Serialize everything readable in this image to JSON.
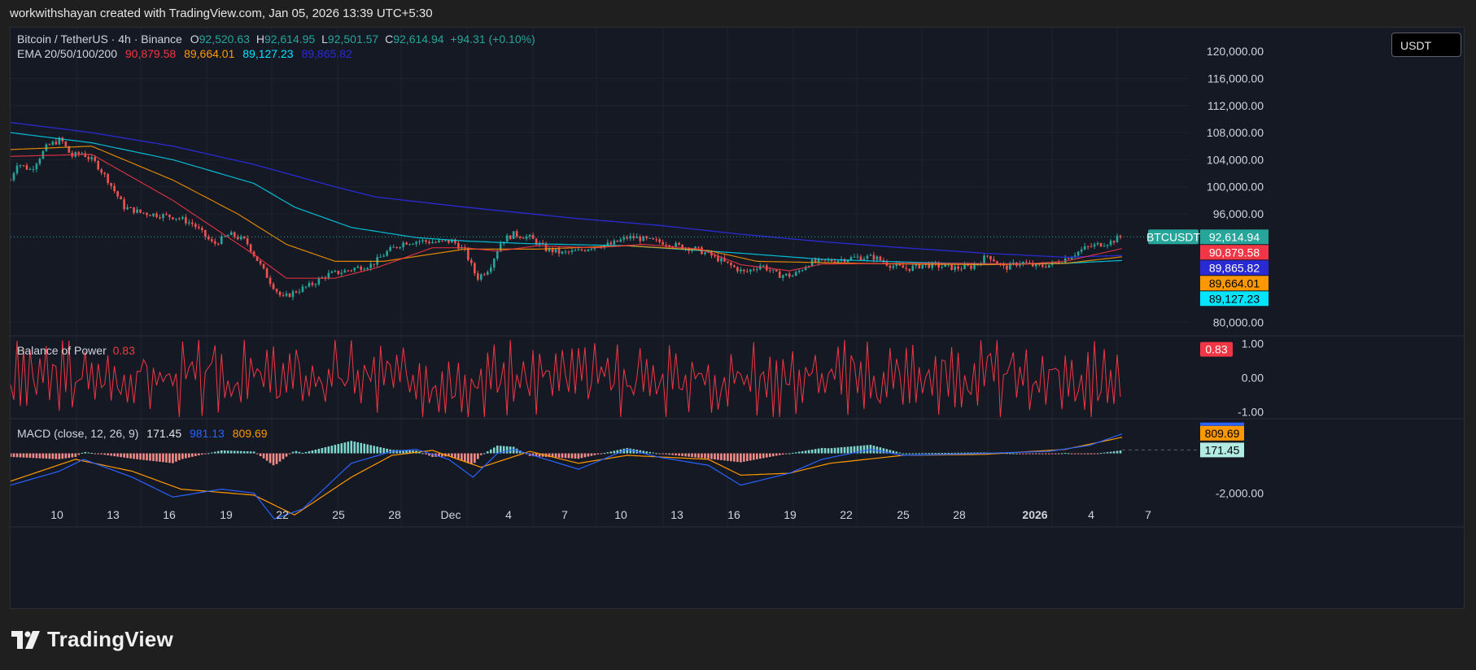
{
  "credit": "workwithshayan created with TradingView.com, Jan 05, 2026 13:39 UTC+5:30",
  "logo_text": "TradingView",
  "currency_button": "USDT",
  "symbol_legend": {
    "title": "Bitcoin / TetherUS · 4h · Binance",
    "o_key": "O",
    "o": "92,520.63",
    "h_key": "H",
    "h": "92,614.95",
    "l_key": "L",
    "l": "92,501.57",
    "c_key": "C",
    "c": "92,614.94",
    "change": "+94.31 (+0.10%)"
  },
  "ema_legend": {
    "title": "EMA 20/50/100/200",
    "v20": "90,879.58",
    "v50": "89,664.01",
    "v100": "89,127.23",
    "v200": "89,865.82"
  },
  "bop_legend": {
    "title": "Balance of Power",
    "value": "0.83"
  },
  "macd_legend": {
    "title": "MACD (close, 12, 26, 9)",
    "hist": "171.45",
    "macd": "981.13",
    "signal": "809.69"
  },
  "colors": {
    "up": "#26a69a",
    "down": "#ef5350",
    "ema20": "#f23645",
    "ema50": "#ff9800",
    "ema100": "#00e5ff",
    "ema200": "#2a2ad4",
    "bop": "#f23645",
    "macd": "#2962ff",
    "signal": "#ff9800"
  },
  "chart_data": [
    {
      "type": "candlestick",
      "title": "Bitcoin / TetherUS · 4h · Binance",
      "y_ticks": [
        "116,000.00",
        "112,000.00",
        "108,000.00",
        "104,000.00",
        "100,000.00",
        "96,000.00",
        "80,000.00"
      ],
      "y_ticks_values": [
        116000,
        112000,
        108000,
        104000,
        100000,
        96000,
        80000
      ],
      "partial_top_tick": "120,000.00",
      "ylim": [
        78000,
        123500
      ],
      "x_ticks": [
        "10",
        "13",
        "16",
        "19",
        "22",
        "25",
        "28",
        "Dec",
        "4",
        "7",
        "10",
        "13",
        "16",
        "19",
        "22",
        "25",
        "28",
        "2026",
        "4",
        "7"
      ],
      "x_tick_bold": "2026",
      "last_price_label": "BTCUSDT",
      "last_price": 92614.94,
      "last_price_text": "92,614.94",
      "ema_tags": [
        {
          "name": "EMA 20",
          "value": 90879.58,
          "text": "90,879.58",
          "color": "#f23645"
        },
        {
          "name": "EMA 200",
          "value": 89865.82,
          "text": "89,865.82",
          "color": "#2a2ad4"
        },
        {
          "name": "EMA 50",
          "value": 89664.01,
          "text": "89,664.01",
          "color": "#ff9800"
        },
        {
          "name": "EMA 100",
          "value": 89127.23,
          "text": "89,127.23",
          "color": "#00e5ff"
        }
      ],
      "anchors": [
        [
          0,
          101000
        ],
        [
          8,
          103500
        ],
        [
          25,
          102500
        ],
        [
          45,
          106000
        ],
        [
          62,
          107000
        ],
        [
          75,
          104500
        ],
        [
          88,
          105000
        ],
        [
          105,
          103500
        ],
        [
          120,
          101000
        ],
        [
          140,
          97000
        ],
        [
          160,
          96200
        ],
        [
          185,
          95800
        ],
        [
          205,
          95500
        ],
        [
          225,
          94500
        ],
        [
          250,
          91500
        ],
        [
          270,
          93000
        ],
        [
          290,
          92000
        ],
        [
          305,
          89000
        ],
        [
          320,
          86000
        ],
        [
          335,
          83500
        ],
        [
          350,
          84500
        ],
        [
          370,
          85500
        ],
        [
          390,
          87000
        ],
        [
          410,
          87500
        ],
        [
          425,
          88000
        ],
        [
          445,
          88500
        ],
        [
          465,
          90500
        ],
        [
          485,
          91800
        ],
        [
          505,
          92000
        ],
        [
          525,
          91800
        ],
        [
          545,
          92000
        ],
        [
          560,
          90500
        ],
        [
          575,
          86500
        ],
        [
          590,
          88000
        ],
        [
          605,
          92000
        ],
        [
          620,
          93000
        ],
        [
          640,
          92500
        ],
        [
          660,
          90800
        ],
        [
          680,
          90200
        ],
        [
          700,
          90500
        ],
        [
          720,
          91300
        ],
        [
          740,
          91500
        ],
        [
          760,
          92500
        ],
        [
          770,
          92500
        ],
        [
          790,
          92000
        ],
        [
          805,
          91800
        ],
        [
          825,
          91200
        ],
        [
          845,
          90800
        ],
        [
          865,
          89800
        ],
        [
          885,
          88500
        ],
        [
          905,
          87300
        ],
        [
          925,
          88500
        ],
        [
          945,
          87000
        ],
        [
          965,
          86900
        ],
        [
          985,
          88800
        ],
        [
          1005,
          89000
        ],
        [
          1025,
          89300
        ],
        [
          1045,
          89600
        ],
        [
          1065,
          89600
        ],
        [
          1085,
          88400
        ],
        [
          1105,
          87900
        ],
        [
          1125,
          88500
        ],
        [
          1145,
          88300
        ],
        [
          1165,
          88000
        ],
        [
          1185,
          88200
        ],
        [
          1205,
          89900
        ],
        [
          1225,
          88000
        ],
        [
          1245,
          88900
        ],
        [
          1265,
          88200
        ],
        [
          1285,
          88600
        ],
        [
          1305,
          89700
        ],
        [
          1325,
          91000
        ],
        [
          1345,
          91600
        ],
        [
          1357,
          91900
        ],
        [
          1366,
          92520
        ],
        [
          1370,
          92614
        ]
      ],
      "ema20_anchors": [
        [
          0,
          104500
        ],
        [
          100,
          104800
        ],
        [
          200,
          98000
        ],
        [
          300,
          90000
        ],
        [
          340,
          86500
        ],
        [
          400,
          86500
        ],
        [
          450,
          88000
        ],
        [
          520,
          91000
        ],
        [
          560,
          91000
        ],
        [
          600,
          90500
        ],
        [
          650,
          91300
        ],
        [
          720,
          91000
        ],
        [
          780,
          91500
        ],
        [
          850,
          90800
        ],
        [
          900,
          88500
        ],
        [
          960,
          87600
        ],
        [
          1000,
          88600
        ],
        [
          1100,
          88700
        ],
        [
          1180,
          88700
        ],
        [
          1250,
          88600
        ],
        [
          1300,
          89000
        ],
        [
          1370,
          90879
        ]
      ],
      "ema50_anchors": [
        [
          0,
          105500
        ],
        [
          100,
          106000
        ],
        [
          200,
          101000
        ],
        [
          280,
          96000
        ],
        [
          340,
          91500
        ],
        [
          400,
          89000
        ],
        [
          460,
          89000
        ],
        [
          560,
          90800
        ],
        [
          650,
          90800
        ],
        [
          760,
          91300
        ],
        [
          860,
          90600
        ],
        [
          920,
          89000
        ],
        [
          1000,
          88800
        ],
        [
          1100,
          88600
        ],
        [
          1200,
          88500
        ],
        [
          1300,
          88700
        ],
        [
          1370,
          89664
        ]
      ],
      "ema100_anchors": [
        [
          0,
          108000
        ],
        [
          100,
          106500
        ],
        [
          200,
          104000
        ],
        [
          300,
          100500
        ],
        [
          350,
          97000
        ],
        [
          420,
          94000
        ],
        [
          500,
          92500
        ],
        [
          560,
          92000
        ],
        [
          640,
          91600
        ],
        [
          760,
          91300
        ],
        [
          900,
          90200
        ],
        [
          1000,
          89300
        ],
        [
          1100,
          88900
        ],
        [
          1200,
          88600
        ],
        [
          1300,
          88700
        ],
        [
          1370,
          89127
        ]
      ],
      "ema200_anchors": [
        [
          0,
          109500
        ],
        [
          100,
          108000
        ],
        [
          200,
          106000
        ],
        [
          300,
          103300
        ],
        [
          400,
          100000
        ],
        [
          450,
          98500
        ],
        [
          560,
          97000
        ],
        [
          700,
          95300
        ],
        [
          800,
          94300
        ],
        [
          900,
          93000
        ],
        [
          1000,
          91900
        ],
        [
          1100,
          91000
        ],
        [
          1200,
          90200
        ],
        [
          1300,
          89600
        ],
        [
          1370,
          89865
        ]
      ]
    },
    {
      "type": "line",
      "title": "Balance of Power",
      "last_value": 0.83,
      "last_value_text": "0.83",
      "y_ticks": [
        "0.00",
        "-1.00"
      ],
      "partial_top_tick": "1.00",
      "ylim": [
        -1.2,
        1.2
      ]
    },
    {
      "type": "macd",
      "title": "MACD (close, 12, 26, 9)",
      "y_ticks": [
        "-2,000.00"
      ],
      "ylim": [
        -3700,
        1700
      ],
      "signal_last": 809.69,
      "signal_last_text": "809.69",
      "hist_last": 171.45,
      "hist_last_text": "171.45",
      "macd_last": 981.13
    }
  ]
}
